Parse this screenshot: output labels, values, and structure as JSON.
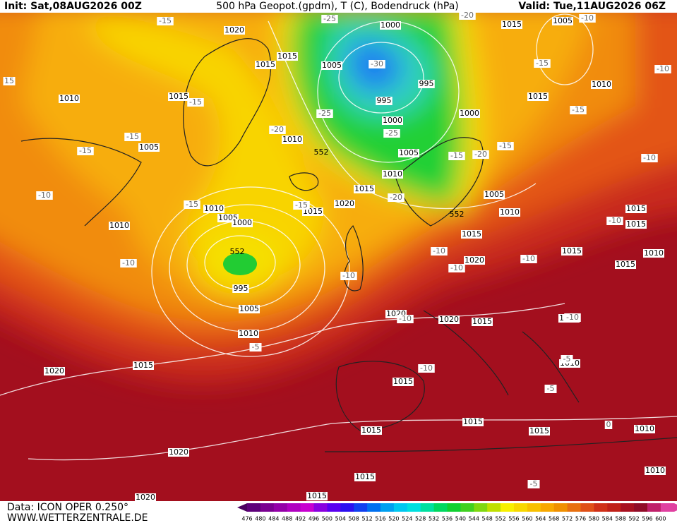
{
  "header": {
    "init": "Init: Sat,08AUG2026 00Z",
    "title": "500 hPa Geopot.(gpdm), T (C), Bodendruck (hPa)",
    "valid": "Valid: Tue,11AUG2026 06Z"
  },
  "footer": {
    "source": "Data: ICON OPER 0.250°",
    "website": "WWW.WETTERZENTRALE.DE"
  },
  "legend": {
    "labels": [
      "476",
      "480",
      "484",
      "488",
      "492",
      "496",
      "500",
      "504",
      "508",
      "512",
      "516",
      "520",
      "524",
      "528",
      "532",
      "536",
      "540",
      "544",
      "548",
      "552",
      "556",
      "560",
      "564",
      "568",
      "572",
      "576",
      "580",
      "584",
      "588",
      "592",
      "596",
      "600"
    ]
  },
  "map": {
    "pressure_labels": [
      "1020",
      "1015",
      "1015",
      "1005",
      "1000",
      "1015",
      "1005",
      "995",
      "995",
      "1015",
      "1010",
      "1010",
      "1015",
      "1000",
      "1000",
      "1005",
      "1010",
      "1005",
      "1010",
      "1015",
      "1005",
      "1020",
      "1015",
      "1010",
      "1005",
      "1000",
      "1010",
      "1015",
      "1015",
      "1010",
      "1015",
      "1015",
      "1010",
      "1020",
      "1015",
      "995",
      "1005",
      "1020",
      "1020",
      "1015",
      "1015",
      "1010",
      "1015",
      "1020",
      "1010",
      "1015",
      "1015",
      "1015",
      "1015",
      "1010",
      "1020",
      "1015",
      "1010",
      "1020",
      "1015"
    ],
    "geopotential_labels": [
      "552",
      "552",
      "552"
    ],
    "temperature_labels": [
      "-15",
      "-25",
      "-20",
      "-10",
      "15",
      "-15",
      "-15",
      "-10",
      "-30",
      "-25",
      "-25",
      "-20",
      "-15",
      "-15",
      "-15",
      "-20",
      "-15",
      "-15",
      "-10",
      "-10",
      "-15",
      "-15",
      "-20",
      "-10",
      "-10",
      "-10",
      "-10",
      "-10",
      "-10",
      "-10",
      "-5",
      "-10",
      "-10",
      "-5",
      "-5",
      "0",
      "-5"
    ]
  }
}
